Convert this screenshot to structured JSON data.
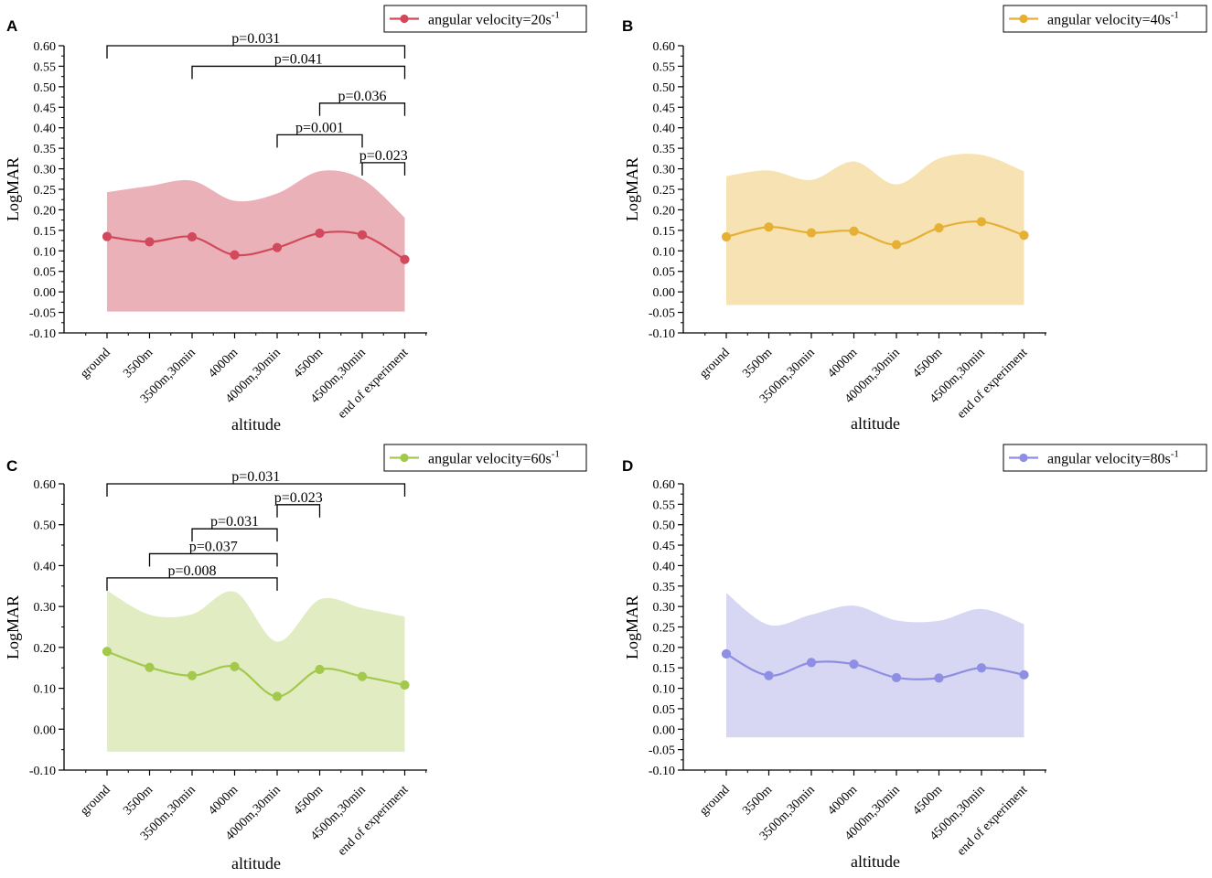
{
  "figure": {
    "y_axis_label": "LogMAR",
    "x_axis_label": "altitude"
  },
  "chart_data": [
    {
      "type": "line",
      "panel": "A",
      "legend": {
        "label": "angular velocity=20s",
        "superscript": "-1"
      },
      "color": "#d1495b",
      "band_color": "#ebb1b8",
      "categories": [
        "ground",
        "3500m",
        "3500m,30min",
        "4000m",
        "4000m,30min",
        "4500m",
        "4500m,30min",
        "end of experiment"
      ],
      "values": [
        0.135,
        0.122,
        0.134,
        0.09,
        0.108,
        0.143,
        0.139,
        0.079
      ],
      "band_upper": [
        0.243,
        0.258,
        0.271,
        0.222,
        0.24,
        0.294,
        0.275,
        0.181
      ],
      "band_lower": [
        -0.048,
        -0.048,
        -0.048,
        -0.048,
        -0.048,
        -0.048,
        -0.048,
        -0.048
      ],
      "ylim": [
        -0.1,
        0.6
      ],
      "yticks": [
        "-0.10",
        "-0.05",
        "0.00",
        "0.05",
        "0.10",
        "0.15",
        "0.20",
        "0.25",
        "0.30",
        "0.35",
        "0.40",
        "0.45",
        "0.50",
        "0.55",
        "0.60"
      ],
      "ytick_step": 0.05,
      "xlabel": "altitude",
      "ylabel": "LogMAR",
      "annotations": [
        {
          "from": 0,
          "to": 7,
          "text": "p=0.031",
          "level": 0.6
        },
        {
          "from": 2,
          "to": 7,
          "text": "p=0.041",
          "level": 0.55
        },
        {
          "from": 5,
          "to": 7,
          "text": "p=0.036",
          "level": 0.46
        },
        {
          "from": 4,
          "to": 6,
          "text": "p=0.001",
          "level": 0.383
        },
        {
          "from": 6,
          "to": 7,
          "text": "p=0.023",
          "level": 0.315
        }
      ]
    },
    {
      "type": "line",
      "panel": "B",
      "legend": {
        "label": "angular velocity=40s",
        "superscript": "-1"
      },
      "color": "#e5b034",
      "band_color": "#f7e2b4",
      "categories": [
        "ground",
        "3500m",
        "3500m,30min",
        "4000m",
        "4000m,30min",
        "4500m",
        "4500m,30min",
        "end of experiment"
      ],
      "values": [
        0.134,
        0.158,
        0.144,
        0.148,
        0.115,
        0.156,
        0.171,
        0.138
      ],
      "band_upper": [
        0.282,
        0.296,
        0.273,
        0.318,
        0.262,
        0.325,
        0.334,
        0.294
      ],
      "band_lower": [
        -0.032,
        -0.032,
        -0.032,
        -0.032,
        -0.032,
        -0.032,
        -0.032,
        -0.032
      ],
      "ylim": [
        -0.1,
        0.6
      ],
      "yticks": [
        "-0.10",
        "-0.05",
        "0.00",
        "0.05",
        "0.10",
        "0.15",
        "0.20",
        "0.25",
        "0.30",
        "0.35",
        "0.40",
        "0.45",
        "0.50",
        "0.55",
        "0.60"
      ],
      "ytick_step": 0.05,
      "xlabel": "altitude",
      "ylabel": "LogMAR",
      "annotations": []
    },
    {
      "type": "line",
      "panel": "C",
      "legend": {
        "label": "angular velocity=60s",
        "superscript": "-1"
      },
      "color": "#a3c94c",
      "band_color": "#e1ecc3",
      "categories": [
        "ground",
        "3500m",
        "3500m,30min",
        "4000m",
        "4000m,30min",
        "4500m",
        "4500m,30min",
        "end of experiment"
      ],
      "values": [
        0.19,
        0.151,
        0.131,
        0.153,
        0.08,
        0.146,
        0.129,
        0.108
      ],
      "band_upper": [
        0.339,
        0.28,
        0.281,
        0.336,
        0.214,
        0.317,
        0.296,
        0.275
      ],
      "band_lower": [
        -0.055,
        -0.055,
        -0.055,
        -0.055,
        -0.055,
        -0.055,
        -0.055,
        -0.055
      ],
      "ylim": [
        -0.1,
        0.6
      ],
      "yticks": [
        "-0.10",
        "0.00",
        "0.10",
        "0.20",
        "0.30",
        "0.40",
        "0.50",
        "0.60"
      ],
      "ytick_step": 0.1,
      "xlabel": "altitude",
      "ylabel": "LogMAR",
      "annotations": [
        {
          "from": 0,
          "to": 7,
          "text": "p=0.031",
          "level": 0.6
        },
        {
          "from": 4,
          "to": 5,
          "text": "p=0.023",
          "level": 0.549
        },
        {
          "from": 2,
          "to": 4,
          "text": "p=0.031",
          "level": 0.49
        },
        {
          "from": 1,
          "to": 4,
          "text": "p=0.037",
          "level": 0.429
        },
        {
          "from": 0,
          "to": 4,
          "text": "p=0.008",
          "level": 0.37
        }
      ]
    },
    {
      "type": "line",
      "panel": "D",
      "legend": {
        "label": "angular velocity=80s",
        "superscript": "-1"
      },
      "color": "#8e8ee2",
      "band_color": "#d7d7f3",
      "categories": [
        "ground",
        "3500m",
        "3500m,30min",
        "4000m",
        "4000m,30min",
        "4500m",
        "4500m,30min",
        "end of experiment"
      ],
      "values": [
        0.184,
        0.131,
        0.163,
        0.159,
        0.126,
        0.125,
        0.15,
        0.133
      ],
      "band_upper": [
        0.333,
        0.255,
        0.28,
        0.302,
        0.266,
        0.265,
        0.294,
        0.257
      ],
      "band_lower": [
        -0.02,
        -0.02,
        -0.02,
        -0.02,
        -0.02,
        -0.02,
        -0.02,
        -0.02
      ],
      "ylim": [
        -0.1,
        0.6
      ],
      "yticks": [
        "-0.10",
        "-0.05",
        "0.00",
        "0.05",
        "0.10",
        "0.15",
        "0.20",
        "0.25",
        "0.30",
        "0.35",
        "0.40",
        "0.45",
        "0.50",
        "0.55",
        "0.60"
      ],
      "ytick_step": 0.05,
      "xlabel": "altitude",
      "ylabel": "LogMAR",
      "annotations": []
    }
  ]
}
